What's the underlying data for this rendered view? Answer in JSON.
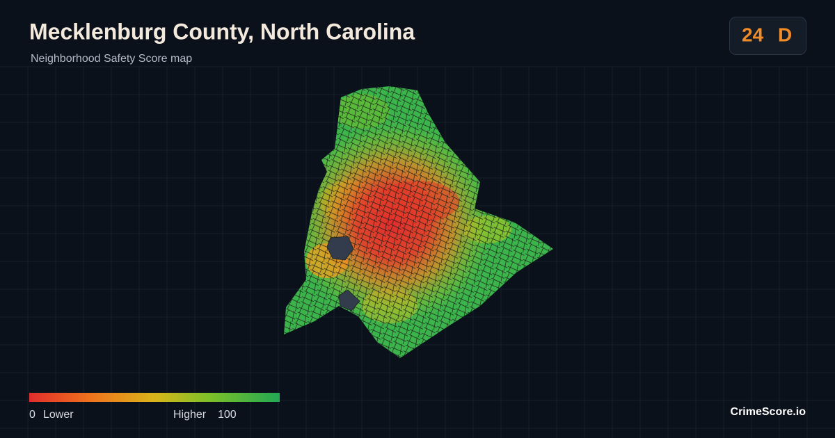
{
  "header": {
    "title": "Mecklenburg County, North Carolina",
    "subtitle": "Neighborhood Safety Score map"
  },
  "badge": {
    "score": 24,
    "grade": "D"
  },
  "legend": {
    "min": 0,
    "min_label": "Lower",
    "max_label": "Higher",
    "max": 100
  },
  "brand": "CrimeScore.io"
}
